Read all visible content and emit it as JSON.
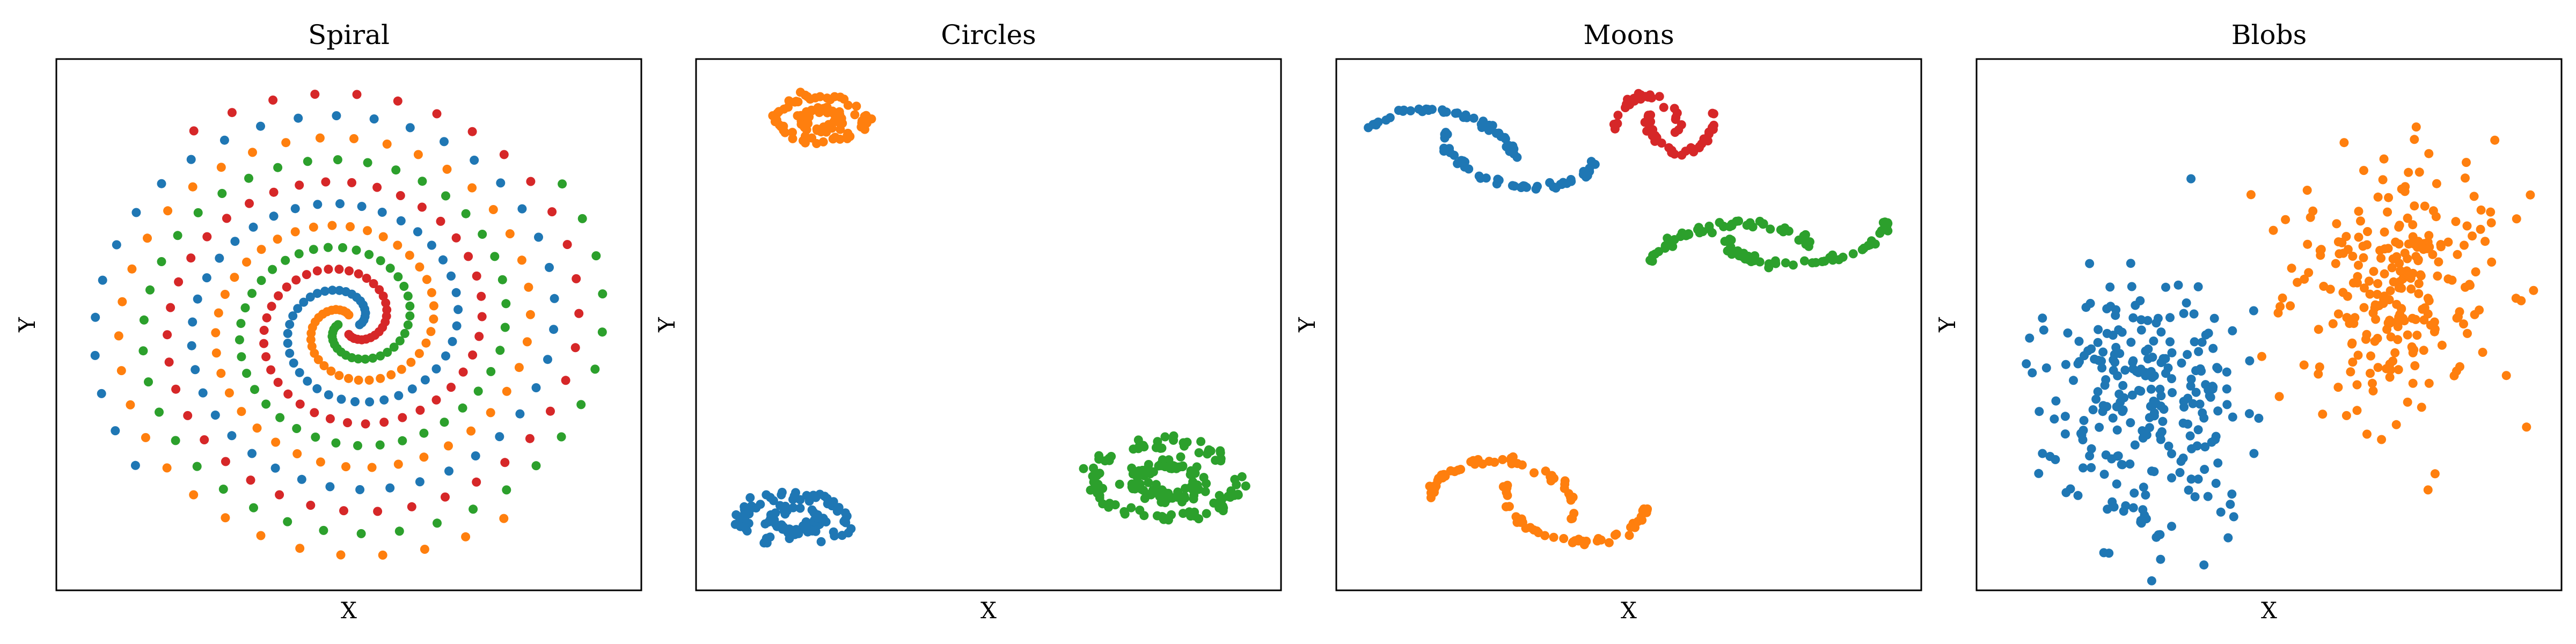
{
  "chart_data": [
    {
      "type": "scatter",
      "title": "Spiral",
      "xlabel": "X",
      "ylabel": "Y",
      "grid": false,
      "ticks": false,
      "xlim": [
        -1,
        1
      ],
      "ylim": [
        -1,
        1
      ],
      "generator": {
        "kind": "spiral",
        "arms": 4,
        "points_per_arm": 100,
        "turns": 2.6,
        "r_min": 0.04,
        "r_max": 0.98,
        "arm_colors": [
          "#1f77b4",
          "#ff7f0e",
          "#2ca02c",
          "#d62728"
        ]
      },
      "series": [
        {
          "color": "#1f77b4",
          "values": []
        },
        {
          "color": "#ff7f0e",
          "values": []
        },
        {
          "color": "#2ca02c",
          "values": []
        },
        {
          "color": "#d62728",
          "values": []
        }
      ]
    },
    {
      "type": "scatter",
      "title": "Circles",
      "xlabel": "X",
      "ylabel": "Y",
      "grid": false,
      "ticks": false,
      "xlim": [
        -1,
        1
      ],
      "ylim": [
        -1,
        1
      ],
      "generator": {
        "kind": "rings",
        "clusters": [
          {
            "color": "#ff7f0e",
            "cx": -0.62,
            "cy": 0.84,
            "rx": 0.16,
            "ry": 0.09,
            "inner": 0.45,
            "n": 110
          },
          {
            "color": "#1f77b4",
            "cx": -0.72,
            "cy": -0.8,
            "rx": 0.19,
            "ry": 0.1,
            "inner": 0.45,
            "n": 120
          },
          {
            "color": "#2ca02c",
            "cx": 0.66,
            "cy": -0.64,
            "rx": 0.27,
            "ry": 0.15,
            "inner": 0.45,
            "n": 180
          }
        ]
      }
    },
    {
      "type": "scatter",
      "title": "Moons",
      "xlabel": "X",
      "ylabel": "Y",
      "grid": false,
      "ticks": false,
      "xlim": [
        -1,
        1
      ],
      "ylim": [
        -1,
        1
      ],
      "generator": {
        "kind": "moons",
        "clusters": [
          {
            "color": "#1f77b4",
            "cx": -0.55,
            "cy": 0.72,
            "sx": 0.28,
            "sy": 0.1,
            "rot": -12,
            "n": 100
          },
          {
            "color": "#d62728",
            "cx": 0.13,
            "cy": 0.82,
            "sx": 0.12,
            "sy": 0.1,
            "rot": 0,
            "n": 70
          },
          {
            "color": "#2ca02c",
            "cx": 0.52,
            "cy": 0.33,
            "sx": 0.3,
            "sy": 0.08,
            "rot": 8,
            "n": 110
          },
          {
            "color": "#ff7f0e",
            "cx": -0.33,
            "cy": -0.72,
            "sx": 0.27,
            "sy": 0.12,
            "rot": -8,
            "n": 100
          }
        ]
      }
    },
    {
      "type": "scatter",
      "title": "Blobs",
      "xlabel": "X",
      "ylabel": "Y",
      "grid": false,
      "ticks": false,
      "xlim": [
        -1,
        1
      ],
      "ylim": [
        -1,
        1
      ],
      "generator": {
        "kind": "blobs",
        "clusters": [
          {
            "color": "#1f77b4",
            "cx": -0.45,
            "cy": -0.3,
            "sx": 0.19,
            "sy": 0.28,
            "n": 260
          },
          {
            "color": "#ff7f0e",
            "cx": 0.48,
            "cy": 0.16,
            "sx": 0.19,
            "sy": 0.26,
            "n": 260
          }
        ]
      }
    }
  ]
}
